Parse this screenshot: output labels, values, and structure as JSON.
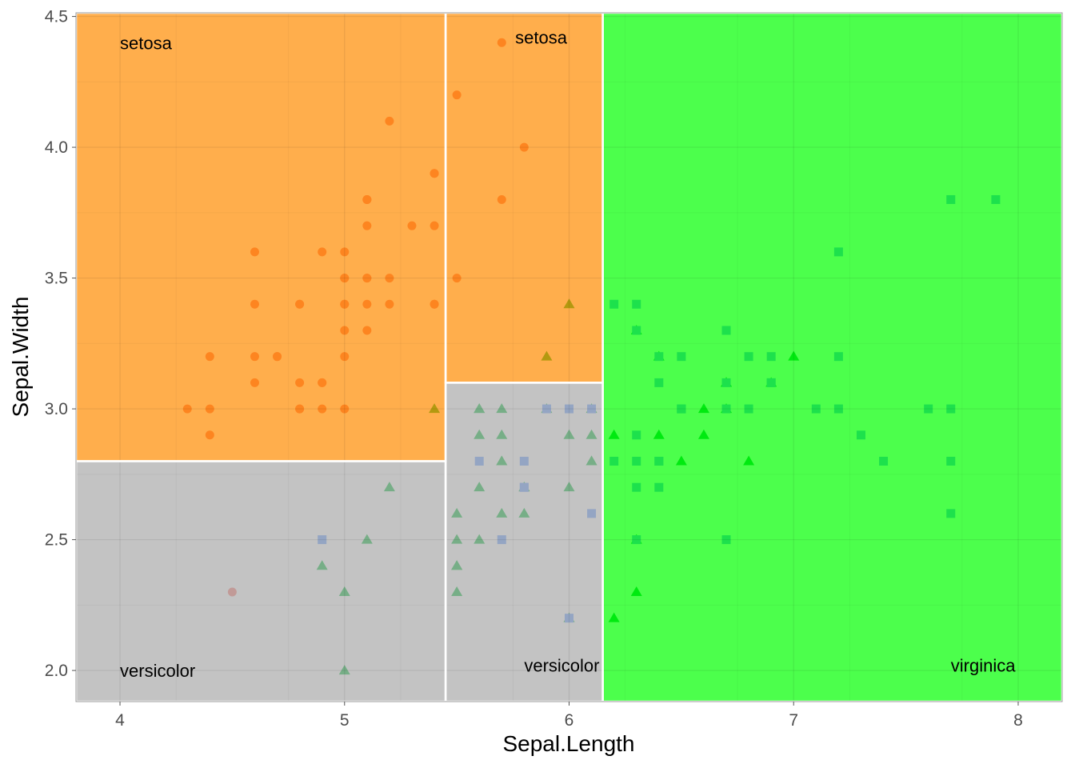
{
  "chart_data": {
    "type": "scatter",
    "title": "",
    "xlabel": "Sepal.Length",
    "ylabel": "Sepal.Width",
    "xlim": [
      3.804,
      8.196
    ],
    "ylim": [
      1.881,
      4.514
    ],
    "xticks": [
      4,
      5,
      6,
      7,
      8
    ],
    "xtick_labels": [
      "4",
      "5",
      "6",
      "7",
      "8"
    ],
    "yticks": [
      2.0,
      2.5,
      3.0,
      3.5,
      4.0,
      4.5
    ],
    "ytick_labels": [
      "2.0",
      "2.5",
      "3.0",
      "3.5",
      "4.0",
      "4.5"
    ],
    "grid": true,
    "regions": [
      {
        "class": "setosa",
        "x": [
          3.804,
          5.45
        ],
        "y": [
          2.8,
          4.514
        ],
        "color": "#FF8C00"
      },
      {
        "class": "versicolor",
        "x": [
          3.804,
          5.45
        ],
        "y": [
          1.881,
          2.8
        ],
        "color": "#A9A9A9"
      },
      {
        "class": "setosa",
        "x": [
          5.45,
          6.15
        ],
        "y": [
          3.1,
          4.514
        ],
        "color": "#FF8C00"
      },
      {
        "class": "versicolor",
        "x": [
          5.45,
          6.15
        ],
        "y": [
          1.881,
          3.1
        ],
        "color": "#A9A9A9"
      },
      {
        "class": "virginica",
        "x": [
          6.15,
          8.196
        ],
        "y": [
          1.881,
          4.514
        ],
        "color": "#00FF00"
      }
    ],
    "region_labels": [
      {
        "text": "setosa",
        "x": 4.0,
        "y": 4.4
      },
      {
        "text": "setosa",
        "x": 5.76,
        "y": 4.42
      },
      {
        "text": "versicolor",
        "x": 4.0,
        "y": 2.0
      },
      {
        "text": "versicolor",
        "x": 5.8,
        "y": 2.02
      },
      {
        "text": "virginica",
        "x": 7.7,
        "y": 2.02
      }
    ],
    "series": [
      {
        "name": "setosa",
        "shape": "circle",
        "color": "#F8766D",
        "x": [
          5.1,
          4.9,
          4.7,
          4.6,
          5.0,
          5.4,
          4.6,
          5.0,
          4.4,
          4.9,
          5.4,
          4.8,
          4.8,
          4.3,
          5.8,
          5.7,
          5.4,
          5.1,
          5.7,
          5.1,
          5.4,
          5.1,
          4.6,
          5.1,
          4.8,
          5.0,
          5.0,
          5.2,
          5.2,
          4.7,
          4.8,
          5.4,
          5.2,
          5.5,
          4.9,
          5.0,
          5.5,
          4.9,
          4.4,
          5.1,
          5.0,
          4.5,
          4.4,
          5.0,
          5.1,
          4.8,
          5.1,
          4.6,
          5.3,
          5.0
        ],
        "y": [
          3.5,
          3.0,
          3.2,
          3.1,
          3.6,
          3.9,
          3.4,
          3.4,
          2.9,
          3.1,
          3.7,
          3.4,
          3.0,
          3.0,
          4.0,
          4.4,
          3.9,
          3.5,
          3.8,
          3.8,
          3.4,
          3.7,
          3.6,
          3.3,
          3.4,
          3.0,
          3.4,
          3.5,
          3.4,
          3.2,
          3.1,
          3.4,
          4.1,
          4.2,
          3.1,
          3.2,
          3.5,
          3.6,
          3.0,
          3.4,
          3.5,
          2.3,
          3.2,
          3.5,
          3.8,
          3.0,
          3.8,
          3.2,
          3.7,
          3.3
        ]
      },
      {
        "name": "versicolor",
        "shape": "triangle",
        "color": "#00BA38",
        "x": [
          7.0,
          6.4,
          6.9,
          5.5,
          6.5,
          5.7,
          6.3,
          4.9,
          6.6,
          5.2,
          5.0,
          5.9,
          6.0,
          6.1,
          5.6,
          6.7,
          5.6,
          5.8,
          6.2,
          5.6,
          5.9,
          6.1,
          6.3,
          6.1,
          6.4,
          6.6,
          6.8,
          6.7,
          6.0,
          5.7,
          5.5,
          5.5,
          5.8,
          6.0,
          5.4,
          6.0,
          6.7,
          6.3,
          5.6,
          5.5,
          5.5,
          6.1,
          5.8,
          5.0,
          5.6,
          5.7,
          5.7,
          6.2,
          5.1,
          5.7
        ],
        "y": [
          3.2,
          3.2,
          3.1,
          2.3,
          2.8,
          2.8,
          3.3,
          2.4,
          2.9,
          2.7,
          2.0,
          3.0,
          2.2,
          2.9,
          2.9,
          3.1,
          3.0,
          2.7,
          2.2,
          2.5,
          3.2,
          2.8,
          2.5,
          2.8,
          2.9,
          3.0,
          2.8,
          3.0,
          2.9,
          2.6,
          2.4,
          2.4,
          2.7,
          2.7,
          3.0,
          3.4,
          3.1,
          2.3,
          3.0,
          2.5,
          2.6,
          3.0,
          2.6,
          2.3,
          2.7,
          3.0,
          2.9,
          2.9,
          2.5,
          2.8
        ]
      },
      {
        "name": "virginica",
        "shape": "square",
        "color": "#619CFF",
        "x": [
          6.3,
          5.8,
          7.1,
          6.3,
          6.5,
          7.6,
          4.9,
          7.3,
          6.7,
          7.2,
          6.5,
          6.4,
          6.8,
          5.7,
          5.8,
          6.4,
          6.5,
          7.7,
          7.7,
          6.0,
          6.9,
          5.6,
          7.7,
          6.3,
          6.7,
          7.2,
          6.2,
          6.1,
          6.4,
          7.2,
          7.4,
          7.9,
          6.4,
          6.3,
          6.1,
          7.7,
          6.3,
          6.4,
          6.0,
          6.9,
          6.7,
          6.9,
          5.8,
          6.8,
          6.7,
          6.7,
          6.3,
          6.5,
          6.2,
          5.9
        ],
        "y": [
          3.3,
          2.7,
          3.0,
          2.9,
          3.0,
          3.0,
          2.5,
          2.9,
          2.5,
          3.6,
          3.2,
          2.7,
          3.0,
          2.5,
          2.8,
          3.2,
          3.0,
          3.8,
          2.6,
          2.2,
          3.2,
          2.8,
          2.8,
          2.7,
          3.3,
          3.2,
          2.8,
          3.0,
          2.8,
          3.0,
          2.8,
          3.8,
          2.8,
          2.8,
          2.6,
          3.0,
          3.4,
          3.1,
          3.0,
          3.1,
          3.1,
          3.1,
          2.7,
          3.2,
          3.3,
          3.0,
          2.5,
          3.0,
          3.4,
          3.0
        ]
      }
    ]
  }
}
